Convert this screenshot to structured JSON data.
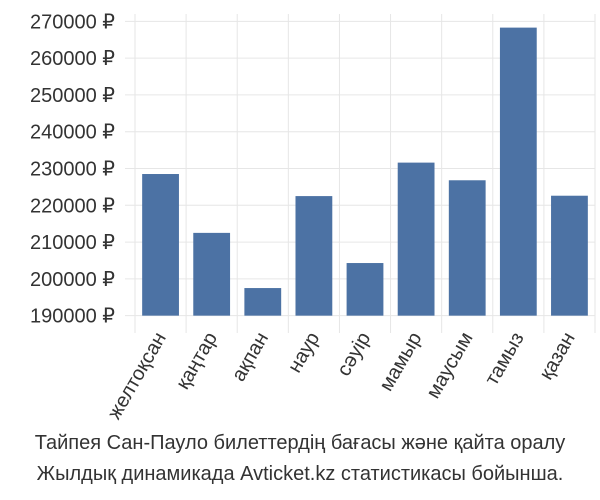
{
  "chart_data": {
    "type": "bar",
    "categories": [
      "желтоқсан",
      "қаңтар",
      "ақпан",
      "наур",
      "сәуір",
      "мамыр",
      "маусым",
      "тамыз",
      "қазан"
    ],
    "values": [
      228500,
      212500,
      197500,
      222500,
      204300,
      231600,
      226800,
      268300,
      222600
    ],
    "ylim": [
      188000,
      272000
    ],
    "yticks": [
      190000,
      200000,
      210000,
      220000,
      230000,
      240000,
      250000,
      260000,
      270000
    ],
    "ytick_labels": [
      "190000 ₽",
      "200000 ₽",
      "210000 ₽",
      "220000 ₽",
      "230000 ₽",
      "240000 ₽",
      "250000 ₽",
      "260000 ₽",
      "270000 ₽"
    ],
    "grid": true,
    "bar_color": "#4c72a4",
    "grid_color": "#e6e6e6"
  },
  "caption": {
    "line1": "Тайпея Сан-Пауло билеттердің бағасы және қайта оралу",
    "line2": "Жылдық динамикада Avticket.kz статистикасы бойынша."
  }
}
